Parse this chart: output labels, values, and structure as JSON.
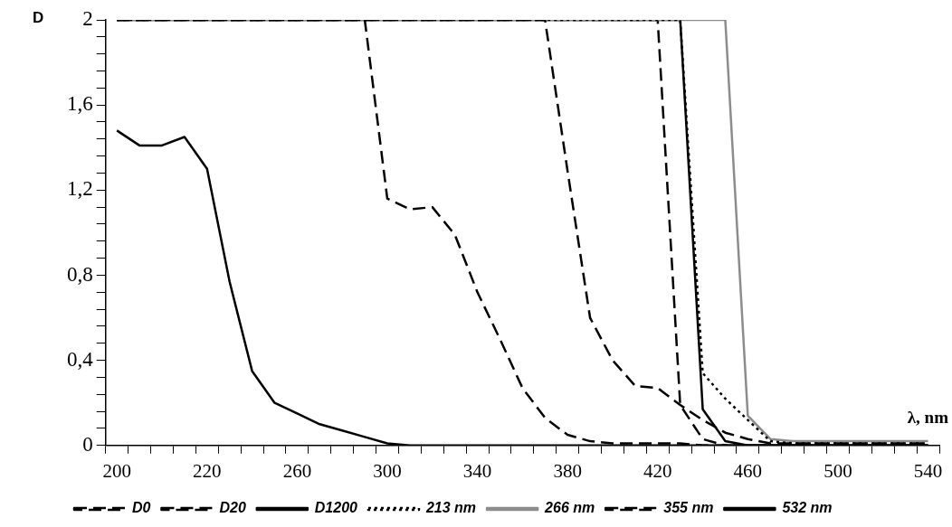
{
  "chart_data": {
    "type": "line",
    "ylabel": "D",
    "xlabel": "λ, nm",
    "categories": [
      "200",
      null,
      null,
      null,
      "220",
      null,
      null,
      null,
      "260",
      null,
      null,
      null,
      "300",
      null,
      null,
      null,
      "340",
      null,
      null,
      null,
      "380",
      null,
      null,
      null,
      "420",
      null,
      null,
      null,
      "460",
      null,
      null,
      null,
      "500",
      null,
      null,
      null,
      "540"
    ],
    "ylim": [
      0,
      2
    ],
    "yticks": [
      {
        "value": 0,
        "label": "0"
      },
      {
        "value": 0.08,
        "label": null
      },
      {
        "value": 0.16,
        "label": null
      },
      {
        "value": 0.24,
        "label": null
      },
      {
        "value": 0.32,
        "label": null
      },
      {
        "value": 0.4,
        "label": "0,4"
      },
      {
        "value": 0.48,
        "label": null
      },
      {
        "value": 0.56,
        "label": null
      },
      {
        "value": 0.64,
        "label": null
      },
      {
        "value": 0.72,
        "label": null
      },
      {
        "value": 0.8,
        "label": "0,8"
      },
      {
        "value": 0.88,
        "label": null
      },
      {
        "value": 0.96,
        "label": null
      },
      {
        "value": 1.04,
        "label": null
      },
      {
        "value": 1.12,
        "label": null
      },
      {
        "value": 1.2,
        "label": "1,2"
      },
      {
        "value": 1.28,
        "label": null
      },
      {
        "value": 1.36,
        "label": null
      },
      {
        "value": 1.44,
        "label": null
      },
      {
        "value": 1.52,
        "label": null
      },
      {
        "value": 1.6,
        "label": "1,6"
      },
      {
        "value": 1.68,
        "label": null
      },
      {
        "value": 1.76,
        "label": null
      },
      {
        "value": 1.84,
        "label": null
      },
      {
        "value": 1.92,
        "label": null
      },
      {
        "value": 2,
        "label": "2"
      }
    ],
    "grid": false,
    "legend": "bottom",
    "marker": "none",
    "series": [
      {
        "name": "D0",
        "color": "#000000",
        "line_style": "dashed",
        "values": [
          2,
          2,
          2,
          2,
          2,
          2,
          2,
          2,
          2,
          2,
          2,
          2,
          2,
          2,
          2,
          2,
          2,
          2,
          2,
          2,
          1.29,
          0.6,
          0.4,
          0.28,
          0.27,
          0.19,
          0.12,
          0.06,
          0.03,
          0.01,
          0.01,
          0.01,
          0.01,
          0.01,
          0.01,
          0.01,
          0.01
        ]
      },
      {
        "name": "D20",
        "color": "#000000",
        "line_style": "dashed",
        "values": [
          2,
          2,
          2,
          2,
          2,
          2,
          2,
          2,
          2,
          2,
          2,
          2,
          1.16,
          1.11,
          1.12,
          0.99,
          0.72,
          0.5,
          0.27,
          0.13,
          0.05,
          0.02,
          0.01,
          0.01,
          0.01,
          0.01,
          0,
          0,
          0,
          0,
          0,
          0,
          0,
          0,
          0,
          0,
          0
        ]
      },
      {
        "name": "D1200",
        "color": "#000000",
        "line_style": "solid",
        "values": [
          1.48,
          1.41,
          1.41,
          1.45,
          1.3,
          0.77,
          0.35,
          0.2,
          0.15,
          0.1,
          0.07,
          0.04,
          0.01,
          0,
          0,
          0,
          0,
          0,
          0,
          0,
          0,
          0,
          0,
          0,
          0,
          0,
          0,
          0,
          0,
          0,
          0,
          0,
          0,
          0,
          0,
          0,
          0
        ]
      },
      {
        "name": "213 nm",
        "color": "#000000",
        "line_style": "dotted",
        "values": [
          2,
          2,
          2,
          2,
          2,
          2,
          2,
          2,
          2,
          2,
          2,
          2,
          2,
          2,
          2,
          2,
          2,
          2,
          2,
          2,
          2,
          2,
          2,
          2,
          2,
          2,
          0.34,
          0.22,
          0.12,
          0.02,
          0.01,
          0.01,
          0.01,
          0.01,
          0.01,
          0.01,
          0.01
        ]
      },
      {
        "name": "266 nm",
        "color": "#8c8c8c",
        "line_style": "solid",
        "values": [
          2,
          2,
          2,
          2,
          2,
          2,
          2,
          2,
          2,
          2,
          2,
          2,
          2,
          2,
          2,
          2,
          2,
          2,
          2,
          2,
          2,
          2,
          2,
          2,
          2,
          2,
          2,
          2,
          0.14,
          0.03,
          0.02,
          0.02,
          0.02,
          0.02,
          0.02,
          0.02,
          0.02
        ]
      },
      {
        "name": "355 nm",
        "color": "#000000",
        "line_style": "dashed",
        "values": [
          2,
          2,
          2,
          2,
          2,
          2,
          2,
          2,
          2,
          2,
          2,
          2,
          2,
          2,
          2,
          2,
          2,
          2,
          2,
          2,
          2,
          2,
          2,
          2,
          2,
          0.19,
          0.03,
          0,
          0,
          0,
          0,
          0,
          0,
          0,
          0,
          0,
          0
        ]
      },
      {
        "name": "532 nm",
        "color": "#000000",
        "line_style": "solid",
        "values": [
          2,
          2,
          2,
          2,
          2,
          2,
          2,
          2,
          2,
          2,
          2,
          2,
          2,
          2,
          2,
          2,
          2,
          2,
          2,
          2,
          2,
          2,
          2,
          2,
          2,
          2,
          0.17,
          0.02,
          0,
          0,
          0,
          0,
          0,
          0,
          0,
          0,
          0
        ]
      }
    ]
  }
}
